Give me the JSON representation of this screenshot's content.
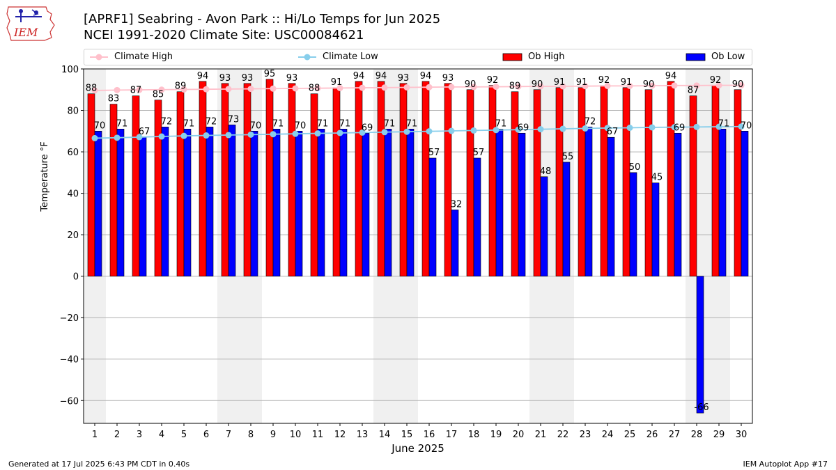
{
  "title_line1": "[APRF1] Seabring - Avon Park :: Hi/Lo Temps for Jun 2025",
  "title_line2": "NCEI 1991-2020 Climate Site: USC00084621",
  "logo_text": "IEM",
  "footer_left": "Generated at 17 Jul 2025 6:43 PM CDT in 0.40s",
  "footer_right": "IEM Autoplot App #17",
  "colors": {
    "ob_high": "#ff0000",
    "ob_low": "#0000ff",
    "climate_high": "#ffc0cb",
    "climate_low": "#87ceeb",
    "weekend_shade": "#f0f0f0",
    "logo": "#cc2222"
  },
  "chart_data": {
    "type": "bar",
    "xlabel": "June 2025",
    "ylabel": "Temperature °F",
    "ylim": [
      -71,
      100
    ],
    "yticks": [
      100,
      80,
      60,
      40,
      20,
      0,
      -20,
      -40,
      -60
    ],
    "grid": true,
    "legend_position": "top",
    "categories": [
      "1",
      "2",
      "3",
      "4",
      "5",
      "6",
      "7",
      "8",
      "9",
      "10",
      "11",
      "12",
      "13",
      "14",
      "15",
      "16",
      "17",
      "18",
      "19",
      "20",
      "21",
      "22",
      "23",
      "24",
      "25",
      "26",
      "27",
      "28",
      "29",
      "30"
    ],
    "shaded_days": [
      1,
      7,
      8,
      14,
      15,
      21,
      22,
      28,
      29
    ],
    "series": [
      {
        "name": "Ob High",
        "type": "bar",
        "values": [
          88,
          83,
          87,
          85,
          89,
          94,
          93,
          93,
          95,
          93,
          88,
          91,
          94,
          94,
          93,
          94,
          93,
          90,
          92,
          89,
          90,
          91,
          91,
          92,
          91,
          90,
          94,
          87,
          92,
          90
        ]
      },
      {
        "name": "Ob Low",
        "type": "bar",
        "values": [
          70,
          71,
          67,
          72,
          71,
          72,
          73,
          70,
          71,
          70,
          71,
          71,
          69,
          71,
          71,
          57,
          32,
          57,
          71,
          69,
          48,
          55,
          72,
          67,
          50,
          45,
          69,
          -66,
          71,
          70
        ]
      },
      {
        "name": "Climate High",
        "type": "line",
        "values": [
          89.6,
          89.8,
          89.9,
          90.0,
          90.1,
          90.2,
          90.3,
          90.4,
          90.5,
          90.6,
          90.7,
          90.8,
          90.9,
          91.0,
          91.1,
          91.2,
          91.3,
          91.3,
          91.4,
          91.5,
          91.6,
          91.6,
          91.7,
          91.8,
          91.8,
          91.9,
          92.0,
          92.0,
          92.1,
          92.1
        ]
      },
      {
        "name": "Climate Low",
        "type": "line",
        "values": [
          66.6,
          66.8,
          67.1,
          67.4,
          67.7,
          67.9,
          68.1,
          68.3,
          68.5,
          68.7,
          68.9,
          69.1,
          69.3,
          69.5,
          69.7,
          69.9,
          70.1,
          70.3,
          70.5,
          70.7,
          70.9,
          71.1,
          71.3,
          71.5,
          71.6,
          71.8,
          71.9,
          72.0,
          72.1,
          72.2
        ]
      }
    ]
  }
}
